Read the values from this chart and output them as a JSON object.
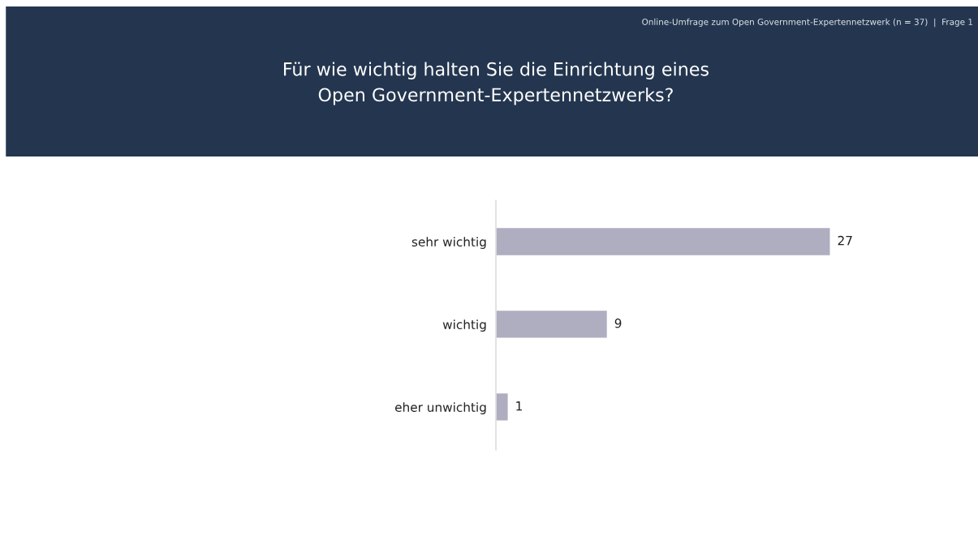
{
  "chart_data": {
    "type": "bar",
    "orientation": "horizontal",
    "title": "Für wie wichtig halten Sie die Einrichtung eines\nOpen Government-Expertennetzwerks?",
    "subtitle": "Online-Umfrage zum Open Government-Expertennetzwerk (n = 37)  |  Frage 1",
    "categories": [
      "sehr wichtig",
      "wichtig",
      "eher unwichtig"
    ],
    "values": [
      27,
      9,
      1
    ],
    "color": "#afadc0",
    "data_labels": true,
    "grid": false,
    "legend": false,
    "tick_labels": "y"
  }
}
